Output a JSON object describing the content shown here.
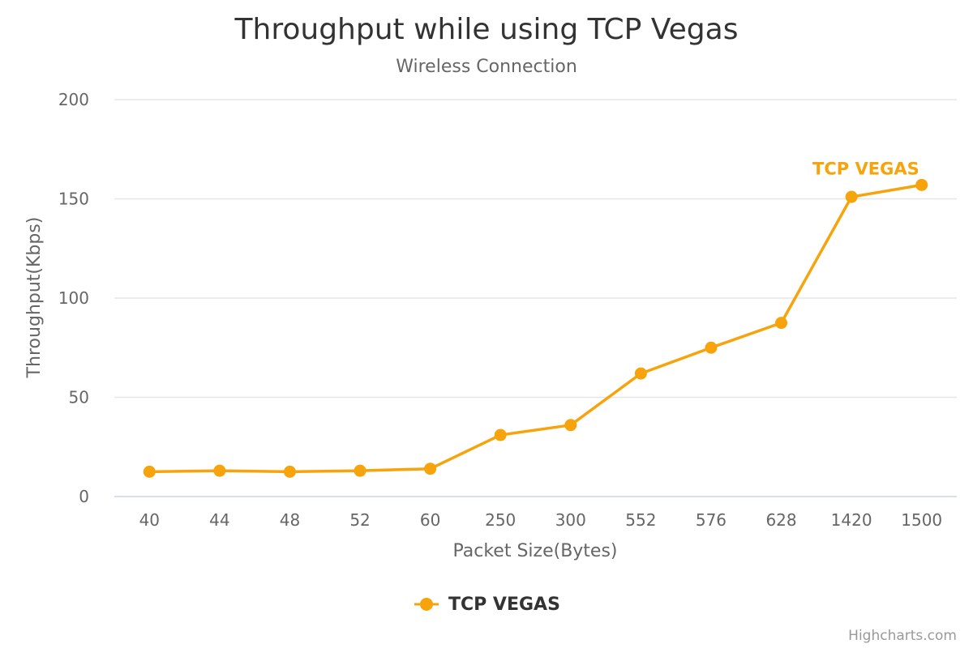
{
  "chart_data": {
    "type": "line",
    "title": "Throughput while using TCP Vegas",
    "subtitle": "Wireless Connection",
    "xlabel": "Packet Size(Bytes)",
    "ylabel": "Throughput(Kbps)",
    "categories": [
      "40",
      "44",
      "48",
      "52",
      "60",
      "250",
      "300",
      "552",
      "576",
      "628",
      "1420",
      "1500"
    ],
    "ylim": [
      0,
      200
    ],
    "yticks": [
      0,
      50,
      100,
      150,
      200
    ],
    "grid": true,
    "legend_position": "bottom-center",
    "series": [
      {
        "name": "TCP VEGAS",
        "color": "#f7a30c",
        "values": [
          12.5,
          13,
          12.5,
          13,
          14,
          31,
          36,
          62,
          75,
          87.5,
          151,
          157
        ]
      }
    ],
    "annotations": [
      {
        "text": "TCP VEGAS",
        "at_category": "1500"
      }
    ],
    "credits": "Highcharts.com"
  }
}
